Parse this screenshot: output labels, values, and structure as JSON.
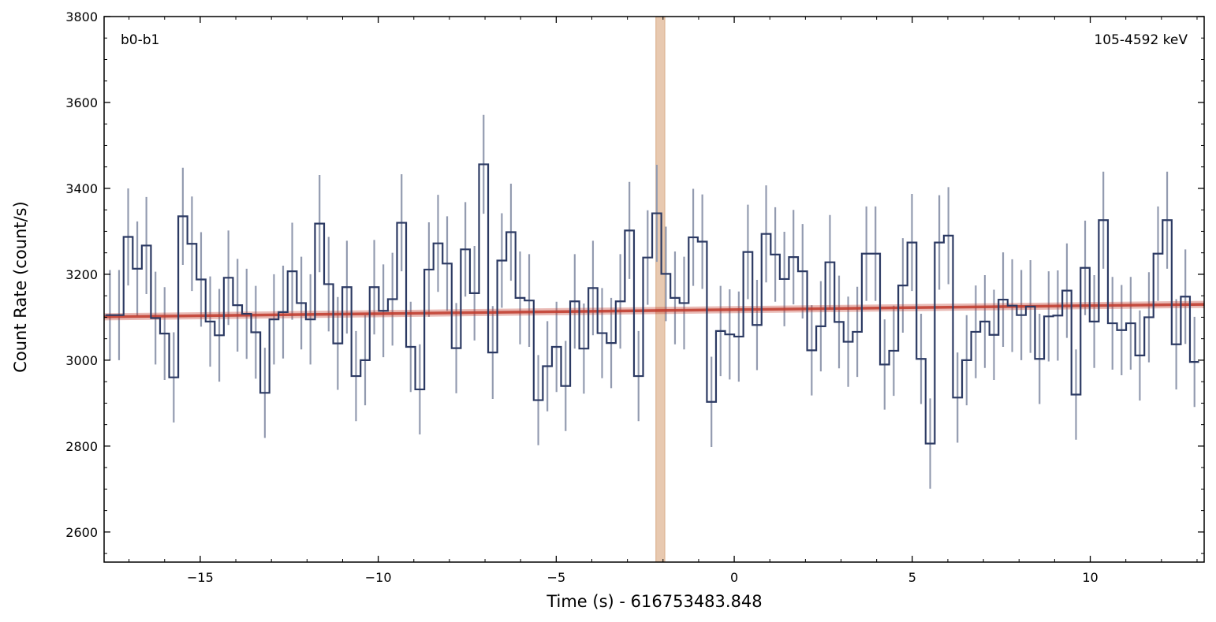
{
  "chart_data": {
    "type": "line",
    "xlabel": "Time (s) - 616753483.848",
    "ylabel": "Count Rate (count/s)",
    "xlim": [
      -17.7,
      13.2
    ],
    "ylim": [
      2530,
      3800
    ],
    "x_ticks": [
      -15,
      -10,
      -5,
      0,
      5,
      10
    ],
    "y_ticks": [
      2600,
      2800,
      3000,
      3200,
      3400,
      3600,
      3800
    ],
    "x_tick_labels": [
      "−15",
      "−10",
      "−5",
      "0",
      "5",
      "10"
    ],
    "y_tick_labels": [
      "2600",
      "2800",
      "3000",
      "3200",
      "3400",
      "3600",
      "3800"
    ],
    "annotation_left": "b0-b1",
    "annotation_right": "105-4592 keV",
    "bin_start": -17.664,
    "bin_width": 0.256,
    "values": [
      3105,
      3105,
      3287,
      3213,
      3267,
      3098,
      3062,
      2960,
      3335,
      3271,
      3188,
      3090,
      3058,
      3192,
      3128,
      3108,
      3065,
      2924,
      3095,
      3112,
      3207,
      3133,
      3095,
      3318,
      3177,
      3039,
      3170,
      2963,
      3000,
      3170,
      3115,
      3142,
      3320,
      3031,
      2932,
      3211,
      3272,
      3225,
      3028,
      3258,
      3156,
      3456,
      3018,
      3232,
      3298,
      3145,
      3139,
      2907,
      2986,
      3031,
      2940,
      3137,
      3027,
      3168,
      3063,
      3040,
      3137,
      3302,
      2963,
      3239,
      3342,
      3201,
      3145,
      3133,
      3286,
      3276,
      2903,
      3068,
      3060,
      3055,
      3252,
      3082,
      3294,
      3246,
      3189,
      3240,
      3207,
      3023,
      3079,
      3228,
      3089,
      3043,
      3066,
      3248,
      3248,
      2990,
      3022,
      3174,
      3274,
      3003,
      2806,
      3274,
      3290,
      2913,
      3000,
      3066,
      3090,
      3059,
      3141,
      3127,
      3105,
      3125,
      3003,
      3102,
      3104,
      3162,
      2920,
      3215,
      3090,
      3326,
      3086,
      3070,
      3086,
      3011,
      3100,
      3248,
      3326,
      3037,
      3148,
      2996
    ],
    "errors": [
      105,
      105,
      113,
      110,
      113,
      108,
      108,
      105,
      113,
      110,
      110,
      105,
      108,
      110,
      108,
      105,
      108,
      105,
      105,
      108,
      113,
      108,
      105,
      113,
      110,
      108,
      108,
      105,
      105,
      110,
      108,
      108,
      113,
      105,
      105,
      110,
      113,
      110,
      105,
      110,
      110,
      115,
      108,
      110,
      113,
      108,
      108,
      105,
      105,
      105,
      105,
      110,
      105,
      110,
      105,
      105,
      110,
      113,
      105,
      110,
      113,
      110,
      108,
      108,
      113,
      110,
      105,
      105,
      105,
      105,
      110,
      105,
      113,
      110,
      110,
      110,
      110,
      105,
      105,
      110,
      108,
      105,
      105,
      110,
      110,
      105,
      105,
      110,
      113,
      105,
      105,
      110,
      113,
      105,
      105,
      108,
      108,
      105,
      110,
      108,
      105,
      108,
      105,
      105,
      105,
      110,
      105,
      110,
      108,
      113,
      108,
      105,
      108,
      105,
      105,
      110,
      113,
      105,
      110,
      105
    ],
    "background_fit": {
      "x_start": -17.7,
      "x_end": 13.2,
      "y_start": 3101,
      "y_end": 3130,
      "color": "#c0392b"
    },
    "highlight_band": {
      "x_start": -2.2,
      "x_end": -1.95,
      "color": "#e8c9b0"
    },
    "colors": {
      "histogram": "#2c3a63",
      "errorbar": "#939bb0",
      "frame": "#000000"
    }
  }
}
